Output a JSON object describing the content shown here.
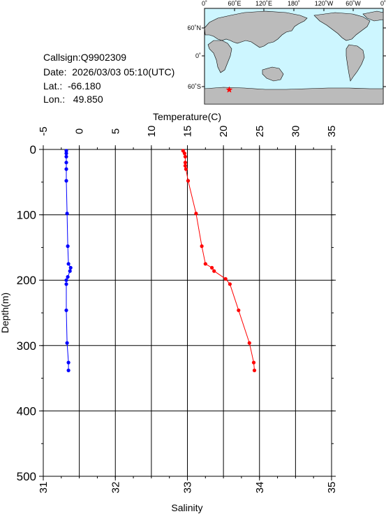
{
  "station": {
    "callsign": "Callsign:Q9902309",
    "date": "Date:  2026/03/03 05:10(UTC)",
    "lat": "Lat.:  -66.180",
    "lon": "Lon.:   49.850"
  },
  "map": {
    "lon_labels": [
      "0˚",
      "60˚E",
      "120˚E",
      "180˚",
      "120˚W",
      "60˚W",
      "0˚"
    ],
    "lat_labels": [
      "60˚N",
      "0˚",
      "60˚S"
    ],
    "ocean_color": "#cdf6ff",
    "land_color": "#bbbbbb",
    "marker": {
      "lon": 49.85,
      "lat": -66.18,
      "color": "#ff0000",
      "icon": "star-icon"
    }
  },
  "chart_data": {
    "type": "line",
    "ylabel": "Depth(m)",
    "ylim": [
      500,
      0
    ],
    "yticks": [
      0,
      100,
      200,
      300,
      400,
      500
    ],
    "top_axis": {
      "label": "Temperature(C)",
      "range": [
        -5,
        35
      ],
      "ticks": [
        -5,
        0,
        5,
        10,
        15,
        20,
        25,
        30,
        35
      ]
    },
    "bottom_axis": {
      "label": "Salinity",
      "range": [
        31,
        35
      ],
      "ticks": [
        31,
        32,
        33,
        34,
        35
      ]
    },
    "grid": true,
    "series": [
      {
        "axis": "top",
        "color": "#ff0000",
        "points": [
          [
            14.4,
            2
          ],
          [
            14.6,
            6
          ],
          [
            14.7,
            11
          ],
          [
            14.7,
            20
          ],
          [
            14.7,
            25
          ],
          [
            14.8,
            30
          ],
          [
            15.1,
            48
          ],
          [
            16.2,
            98
          ],
          [
            17.0,
            148
          ],
          [
            17.5,
            175
          ],
          [
            18.4,
            181
          ],
          [
            18.7,
            186
          ],
          [
            20.3,
            198
          ],
          [
            20.9,
            206
          ],
          [
            22.1,
            246
          ],
          [
            23.6,
            296
          ],
          [
            24.2,
            326
          ],
          [
            24.3,
            338
          ]
        ]
      },
      {
        "axis": "bottom",
        "color": "#0000ff",
        "points": [
          [
            31.32,
            2
          ],
          [
            31.32,
            6
          ],
          [
            31.32,
            11
          ],
          [
            31.32,
            20
          ],
          [
            31.32,
            30
          ],
          [
            31.32,
            48
          ],
          [
            31.33,
            98
          ],
          [
            31.34,
            148
          ],
          [
            31.35,
            175
          ],
          [
            31.38,
            181
          ],
          [
            31.37,
            186
          ],
          [
            31.34,
            195
          ],
          [
            31.32,
            200
          ],
          [
            31.32,
            206
          ],
          [
            31.32,
            246
          ],
          [
            31.33,
            296
          ],
          [
            31.35,
            326
          ],
          [
            31.35,
            338
          ]
        ]
      }
    ]
  }
}
